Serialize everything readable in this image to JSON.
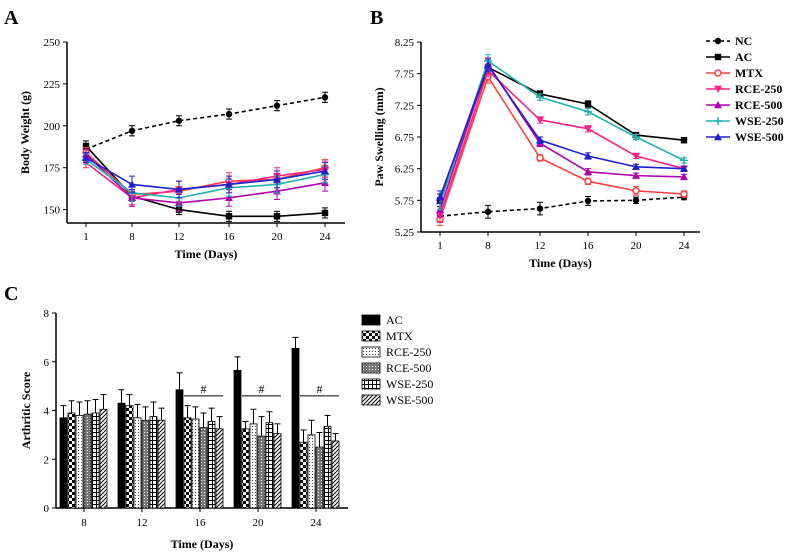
{
  "chart_data": [
    {
      "panel": "A",
      "type": "line",
      "xlabel": "Time (Days)",
      "ylabel": "Body Weight (g)",
      "x": [
        1,
        8,
        12,
        16,
        20,
        24
      ],
      "xticks": [
        "1",
        "8",
        "12",
        "16",
        "20",
        "24"
      ],
      "ylim": [
        142,
        250
      ],
      "yticks": [
        150,
        175,
        200,
        225,
        250
      ],
      "series": [
        {
          "name": "NC",
          "values": [
            186,
            197,
            203,
            207,
            212,
            217
          ],
          "err": [
            3,
            3,
            3,
            3,
            3,
            3
          ],
          "color": "#000000",
          "marker": "circle",
          "dash": true
        },
        {
          "name": "AC",
          "values": [
            188,
            158,
            150,
            146,
            146,
            148
          ],
          "err": [
            3,
            3,
            3,
            3,
            3,
            3
          ],
          "color": "#000000",
          "marker": "square",
          "dash": false
        },
        {
          "name": "MTX",
          "values": [
            184,
            159,
            161,
            167,
            168,
            175
          ],
          "err": [
            3,
            6,
            6,
            5,
            5,
            5
          ],
          "color": "#ff4040",
          "marker": "circle-open",
          "dash": false
        },
        {
          "name": "RCE-250",
          "values": [
            178,
            157,
            162,
            165,
            170,
            174
          ],
          "err": [
            3,
            5,
            5,
            5,
            5,
            5
          ],
          "color": "#ff2080",
          "marker": "tri-down",
          "dash": false
        },
        {
          "name": "RCE-500",
          "values": [
            183,
            157,
            154,
            157,
            161,
            166
          ],
          "err": [
            3,
            5,
            5,
            5,
            5,
            5
          ],
          "color": "#b000b0",
          "marker": "tri-up",
          "dash": false
        },
        {
          "name": "WSE-250",
          "values": [
            180,
            160,
            157,
            163,
            165,
            171
          ],
          "err": [
            3,
            5,
            5,
            5,
            5,
            5
          ],
          "color": "#20b0b0",
          "marker": "plus",
          "dash": false
        },
        {
          "name": "WSE-500",
          "values": [
            181,
            165,
            162,
            165,
            168,
            173
          ],
          "err": [
            3,
            5,
            5,
            5,
            5,
            5
          ],
          "color": "#2020d0",
          "marker": "tri-up",
          "dash": false
        }
      ]
    },
    {
      "panel": "B",
      "type": "line",
      "xlabel": "Time (Days)",
      "ylabel": "Paw Swelling (mm)",
      "x": [
        1,
        8,
        12,
        16,
        20,
        24
      ],
      "xticks": [
        "1",
        "8",
        "12",
        "16",
        "20",
        "24"
      ],
      "ylim": [
        5.25,
        8.25
      ],
      "yticks": [
        "5.25",
        "5.75",
        "6.25",
        "6.75",
        "7.25",
        "7.75",
        "8.25"
      ],
      "series": [
        {
          "name": "NC",
          "values": [
            5.5,
            5.57,
            5.62,
            5.74,
            5.75,
            5.8
          ],
          "err": [
            0.05,
            0.1,
            0.1,
            0.07,
            0.05,
            0.04
          ],
          "color": "#000000",
          "marker": "circle",
          "dash": true
        },
        {
          "name": "AC",
          "values": [
            5.75,
            7.85,
            7.43,
            7.27,
            6.78,
            6.7
          ],
          "err": [
            0.1,
            0.1,
            0.05,
            0.05,
            0.04,
            0.04
          ],
          "color": "#000000",
          "marker": "square",
          "dash": false
        },
        {
          "name": "MTX",
          "values": [
            5.45,
            7.7,
            6.42,
            6.05,
            5.9,
            5.85
          ],
          "err": [
            0.1,
            0.1,
            0.05,
            0.05,
            0.07,
            0.05
          ],
          "color": "#ff4040",
          "marker": "circle-open",
          "dash": false
        },
        {
          "name": "RCE-250",
          "values": [
            5.5,
            7.8,
            7.02,
            6.88,
            6.45,
            6.25
          ],
          "err": [
            0.1,
            0.1,
            0.05,
            0.05,
            0.04,
            0.04
          ],
          "color": "#ff2080",
          "marker": "tri-down",
          "dash": false
        },
        {
          "name": "RCE-500",
          "values": [
            5.6,
            7.9,
            6.65,
            6.2,
            6.14,
            6.12
          ],
          "err": [
            0.1,
            0.1,
            0.05,
            0.05,
            0.04,
            0.04
          ],
          "color": "#b000b0",
          "marker": "tri-up",
          "dash": false
        },
        {
          "name": "WSE-250",
          "values": [
            5.7,
            7.95,
            7.38,
            7.15,
            6.75,
            6.38
          ],
          "err": [
            0.1,
            0.1,
            0.05,
            0.05,
            0.04,
            0.04
          ],
          "color": "#20b0b0",
          "marker": "plus",
          "dash": false
        },
        {
          "name": "WSE-500",
          "values": [
            5.8,
            7.88,
            6.7,
            6.45,
            6.28,
            6.25
          ],
          "err": [
            0.1,
            0.1,
            0.05,
            0.05,
            0.04,
            0.04
          ],
          "color": "#2020d0",
          "marker": "tri-up",
          "dash": false
        }
      ]
    },
    {
      "panel": "C",
      "type": "bar",
      "xlabel": "Time (Days)",
      "ylabel": "Arthritic Score",
      "categories": [
        "8",
        "12",
        "16",
        "20",
        "24"
      ],
      "ylim": [
        0,
        8
      ],
      "yticks": [
        "0",
        "2",
        "4",
        "6",
        "8"
      ],
      "significance_label": "#",
      "significance_groups": [
        "16",
        "20",
        "24"
      ],
      "series": [
        {
          "name": "AC",
          "values": [
            3.7,
            4.3,
            4.85,
            5.65,
            6.55
          ],
          "err": [
            0.5,
            0.55,
            0.7,
            0.55,
            0.45
          ],
          "pattern": "solid"
        },
        {
          "name": "MTX",
          "values": [
            3.9,
            4.2,
            3.7,
            3.25,
            2.7
          ],
          "err": [
            0.5,
            0.45,
            0.5,
            0.3,
            0.5
          ],
          "pattern": "checker"
        },
        {
          "name": "RCE-250",
          "values": [
            3.8,
            3.7,
            3.65,
            3.45,
            3.0
          ],
          "err": [
            0.55,
            0.55,
            0.5,
            0.6,
            0.6
          ],
          "pattern": "dots"
        },
        {
          "name": "RCE-500",
          "values": [
            3.85,
            3.6,
            3.3,
            2.95,
            2.5
          ],
          "err": [
            0.55,
            0.55,
            0.6,
            0.8,
            0.6
          ],
          "pattern": "dense"
        },
        {
          "name": "WSE-250",
          "values": [
            3.9,
            3.75,
            3.55,
            3.5,
            3.35
          ],
          "err": [
            0.55,
            0.6,
            0.55,
            0.45,
            0.45
          ],
          "pattern": "grid"
        },
        {
          "name": "WSE-500",
          "values": [
            4.05,
            3.6,
            3.25,
            3.05,
            2.75
          ],
          "err": [
            0.6,
            0.5,
            0.5,
            0.4,
            0.3
          ],
          "pattern": "diagonal"
        }
      ]
    }
  ],
  "panel_labels": {
    "a": "A",
    "b": "B",
    "c": "C"
  }
}
